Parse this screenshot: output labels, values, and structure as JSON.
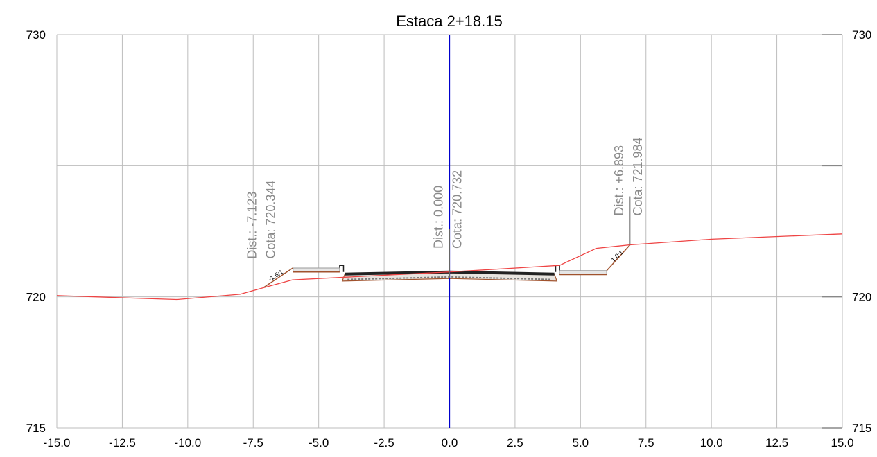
{
  "chart_data": {
    "type": "line",
    "title": "Estaca 2+18.15",
    "xlim": [
      -15,
      15
    ],
    "ylim": [
      715,
      730
    ],
    "x_ticks": [
      -15,
      -12.5,
      -10,
      -7.5,
      -5,
      -2.5,
      0,
      2.5,
      5,
      7.5,
      10,
      12.5,
      15
    ],
    "x_tick_labels": [
      "-15.0",
      "-12.5",
      "-10.0",
      "-7.5",
      "-5.0",
      "-2.5",
      "0.0",
      "2.5",
      "5.0",
      "7.5",
      "10.0",
      "12.5",
      "15.0"
    ],
    "y_ticks": [
      715,
      720,
      725,
      730
    ],
    "y_tick_labels": [
      "715",
      "720",
      "",
      "730"
    ],
    "grid": true,
    "colors": {
      "terrain": "#ee4444",
      "axis_line": "#0000cc",
      "grid": "#bdbdbd",
      "annotation": "#8a8a8a",
      "earthwork": "#a0522d",
      "pavement": "#222222"
    },
    "series": [
      {
        "role": "terrain",
        "x": [
          -15.0,
          -12.0,
          -10.4,
          -8.0,
          -7.123,
          -6.0,
          -4.0,
          0.0,
          4.2,
          5.6,
          6.893,
          10.0,
          15.0
        ],
        "y": [
          720.05,
          719.95,
          719.9,
          720.1,
          720.344,
          720.65,
          720.75,
          720.95,
          721.2,
          721.85,
          721.984,
          722.2,
          722.4
        ]
      },
      {
        "role": "section-left-slope",
        "x": [
          -7.123,
          -5.98
        ],
        "y": [
          720.344,
          721.106
        ]
      },
      {
        "role": "section-left-berm",
        "x": [
          -5.98,
          -4.2
        ],
        "y": [
          721.1,
          721.1
        ]
      },
      {
        "role": "pavement-top",
        "x": [
          -4.0,
          0.0,
          4.0
        ],
        "y": [
          720.87,
          720.95,
          720.87
        ]
      },
      {
        "role": "subbase-bottom",
        "x": [
          -4.1,
          0.0,
          4.1
        ],
        "y": [
          720.6,
          720.7,
          720.6
        ]
      },
      {
        "role": "section-right-berm",
        "x": [
          4.2,
          6.0
        ],
        "y": [
          721.0,
          721.0
        ]
      },
      {
        "role": "section-right-slope",
        "x": [
          6.0,
          6.893
        ],
        "y": [
          721.0,
          721.984
        ]
      }
    ],
    "annotations": [
      {
        "x": -7.123,
        "y": 720.344,
        "lines": [
          "Dist.: -7.123",
          "Cota: 720.344"
        ]
      },
      {
        "x": 0.0,
        "y": 720.732,
        "lines": [
          "Dist.: 0.000",
          "Cota: 720.732"
        ]
      },
      {
        "x": 6.893,
        "y": 721.984,
        "lines": [
          "Dist.: +6.893",
          "Cota: 721.984"
        ]
      }
    ],
    "slope_labels": [
      {
        "text": "-1.5:1",
        "x": -6.6,
        "y": 720.75
      },
      {
        "text": "1.0:1",
        "x": 6.45,
        "y": 721.5
      }
    ],
    "centerline_x": 0.0
  }
}
